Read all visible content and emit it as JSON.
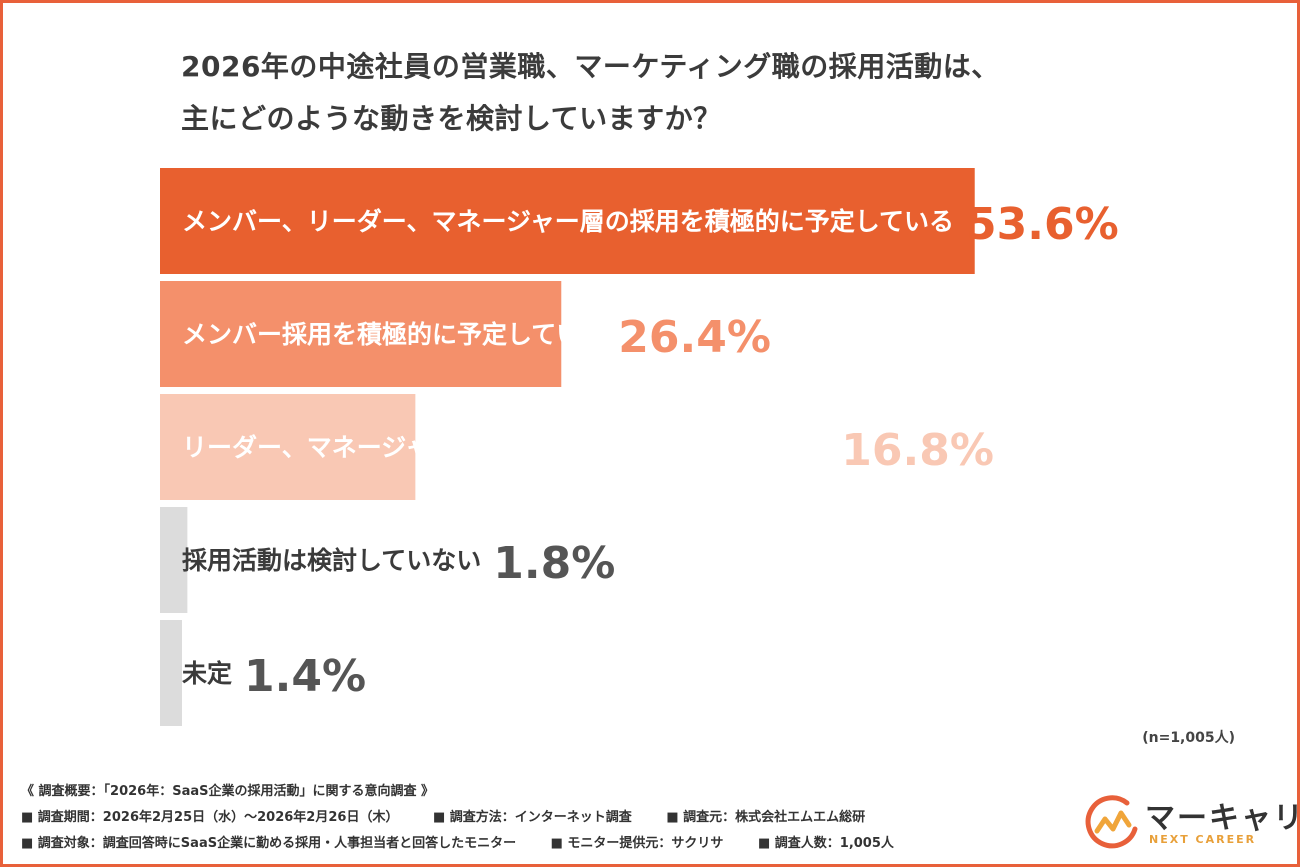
{
  "title": {
    "line1": "2026年の中途社員の営業職、マーケティング職の採用活動は、",
    "line2": "主にどのような動きを検討していますか？"
  },
  "chart_data": {
    "type": "bar",
    "orientation": "horizontal",
    "categories": [
      "メンバー、リーダー、マネージャー層の採用を積極的に予定している",
      "メンバー採用を積極的に予定している",
      "リーダー、マネージャー層の採用を積極的に予定している",
      "採用活動は検討していない",
      "未定"
    ],
    "values": [
      53.6,
      26.4,
      16.8,
      1.8,
      1.4
    ],
    "value_labels": [
      "53.6%",
      "26.4%",
      "16.8%",
      "1.8%",
      "1.4%"
    ],
    "unit": "%",
    "bar_colors": [
      "#e8602f",
      "#f4906b",
      "#f9c8b4",
      "#dcdcdc",
      "#dcdcdc"
    ],
    "label_colors": [
      "#ffffff",
      "#ffffff",
      "#ffffff",
      "#3b3b3b",
      "#3b3b3b"
    ],
    "value_colors": [
      "#e8602f",
      "#f4906b",
      "#f9c8b4",
      "#555555",
      "#555555"
    ],
    "xlim": [
      0,
      100
    ],
    "grid": false,
    "legend": "none"
  },
  "sample_note": "(n=1,005人)",
  "footer": {
    "heading": "《 調査概要：「2026年：SaaS企業の採用活動」に関する意向調査 》",
    "row1": [
      "■ 調査期間：2026年2月25日（水）〜2026年2月26日（木）",
      "■ 調査方法：インターネット調査",
      "■ 調査元：株式会社エムエム総研"
    ],
    "row2": [
      "■ 調査対象：調査回答時にSaaS企業に勤める採用・人事担当者と回答したモニター",
      "■ モニター提供元：サクリサ",
      "■ 調査人数：1,005人"
    ]
  },
  "logo": {
    "name": "マーキャリ",
    "tagline": "NEXT CAREER",
    "icon": "mountain-chart-icon",
    "colors": [
      "#e8603a",
      "#f0a53a"
    ]
  }
}
